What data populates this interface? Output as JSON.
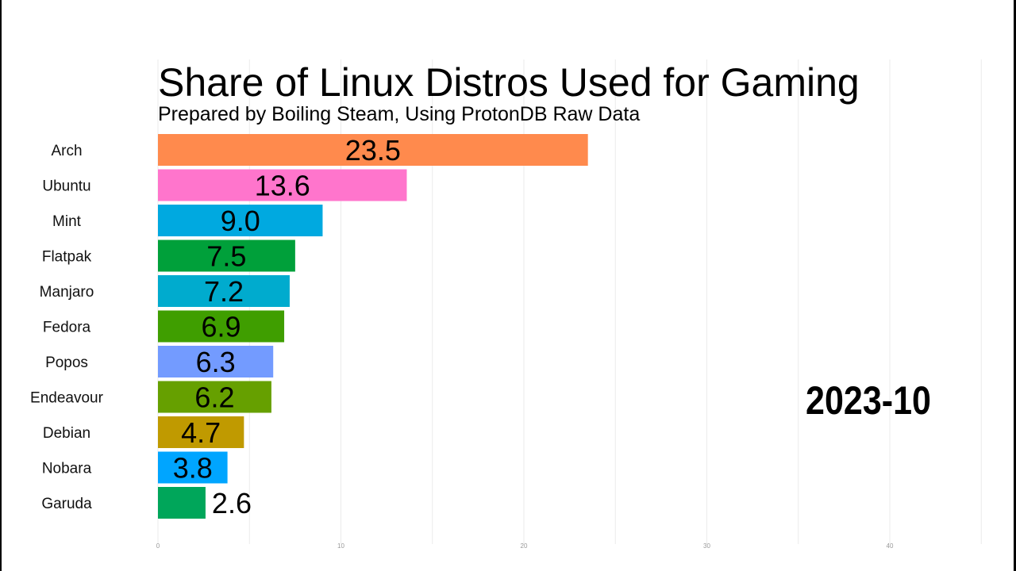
{
  "chart_data": {
    "type": "bar",
    "orientation": "horizontal",
    "title": "Share of Linux Distros Used for Gaming",
    "subtitle": "Prepared by Boiling Steam, Using ProtonDB Raw Data",
    "date_label": "2023-10",
    "xlabel": "",
    "ylabel": "",
    "xlim": [
      0,
      45
    ],
    "xticks": [
      0,
      10,
      20,
      30,
      40
    ],
    "grid": true,
    "legend": "none",
    "categories": [
      "Arch",
      "Ubuntu",
      "Mint",
      "Flatpak",
      "Manjaro",
      "Fedora",
      "Popos",
      "Endeavour",
      "Debian",
      "Nobara",
      "Garuda"
    ],
    "values": [
      23.5,
      13.6,
      9.0,
      7.5,
      7.2,
      6.9,
      6.3,
      6.2,
      4.7,
      3.8,
      2.6
    ],
    "value_labels": [
      "23.5",
      "13.6",
      "9.0",
      "7.5",
      "7.2",
      "6.9",
      "6.3",
      "6.2",
      "4.7",
      "3.8",
      "2.6"
    ],
    "colors": [
      "#ff8a4d",
      "#ff75cc",
      "#00a9e0",
      "#00a03a",
      "#00abce",
      "#3f9e00",
      "#739bff",
      "#66a000",
      "#c09a00",
      "#00a5ff",
      "#00a65a"
    ]
  }
}
